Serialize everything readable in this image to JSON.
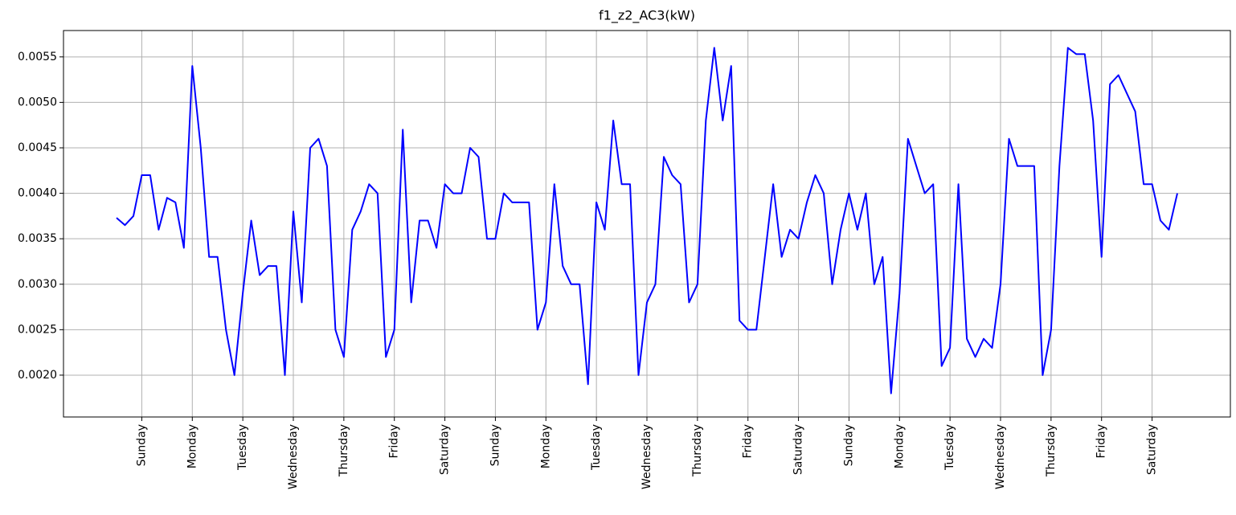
{
  "chart_data": {
    "type": "line",
    "title": "f1_z2_AC3(kW)",
    "categories": [
      null,
      null,
      null,
      "Sunday",
      null,
      null,
      null,
      null,
      null,
      "Monday",
      null,
      null,
      null,
      null,
      null,
      "Tuesday",
      null,
      null,
      null,
      null,
      null,
      "Wednesday",
      null,
      null,
      null,
      null,
      null,
      "Thursday",
      null,
      null,
      null,
      null,
      null,
      "Friday",
      null,
      null,
      null,
      null,
      null,
      "Saturday",
      null,
      null,
      null,
      null,
      null,
      "Sunday",
      null,
      null,
      null,
      null,
      null,
      "Monday",
      null,
      null,
      null,
      null,
      null,
      "Tuesday",
      null,
      null,
      null,
      null,
      null,
      "Wednesday",
      null,
      null,
      null,
      null,
      null,
      "Thursday",
      null,
      null,
      null,
      null,
      null,
      "Friday",
      null,
      null,
      null,
      null,
      null,
      "Saturday",
      null,
      null,
      null,
      null,
      null,
      "Sunday",
      null,
      null,
      null,
      null,
      null,
      "Monday",
      null,
      null,
      null,
      null,
      null,
      "Tuesday",
      null,
      null,
      null,
      null,
      null,
      "Wednesday",
      null,
      null,
      null,
      null,
      null,
      "Thursday",
      null,
      null,
      null,
      null,
      null,
      "Friday",
      null,
      null,
      null,
      null,
      null,
      "Saturday",
      null,
      null,
      null
    ],
    "values": [
      0.00373,
      0.00365,
      0.00375,
      0.0042,
      0.0042,
      0.0036,
      0.00395,
      0.0039,
      0.0034,
      0.0054,
      0.0045,
      0.0033,
      0.0033,
      0.0025,
      0.002,
      0.0029,
      0.0037,
      0.0031,
      0.0032,
      0.0032,
      0.002,
      0.0038,
      0.0028,
      0.0045,
      0.0046,
      0.0043,
      0.0025,
      0.0022,
      0.0036,
      0.0038,
      0.0041,
      0.004,
      0.0022,
      0.0025,
      0.0047,
      0.0028,
      0.0037,
      0.0037,
      0.0034,
      0.0041,
      0.004,
      0.004,
      0.0045,
      0.0044,
      0.0035,
      0.0035,
      0.004,
      0.0039,
      0.0039,
      0.0039,
      0.0025,
      0.0028,
      0.0041,
      0.0032,
      0.003,
      0.003,
      0.0019,
      0.0039,
      0.0036,
      0.0048,
      0.0041,
      0.0041,
      0.002,
      0.0028,
      0.003,
      0.0044,
      0.0042,
      0.0041,
      0.0028,
      0.003,
      0.0048,
      0.0056,
      0.0048,
      0.0054,
      0.0026,
      0.0025,
      0.0025,
      0.0033,
      0.0041,
      0.0033,
      0.0036,
      0.0035,
      0.0039,
      0.0042,
      0.004,
      0.003,
      0.0036,
      0.004,
      0.0036,
      0.004,
      0.003,
      0.0033,
      0.0018,
      0.0029,
      0.0046,
      0.0043,
      0.004,
      0.0041,
      0.0021,
      0.0023,
      0.0041,
      0.0024,
      0.0022,
      0.0024,
      0.0023,
      0.003,
      0.0046,
      0.0043,
      0.0043,
      0.0043,
      0.002,
      0.0025,
      0.0043,
      0.0056,
      0.00553,
      0.00553,
      0.0048,
      0.0033,
      0.0052,
      0.0053,
      0.0051,
      0.0049,
      0.0041,
      0.0041,
      0.0037,
      0.0036,
      0.004
    ],
    "color": "#0000ff",
    "ylim": [
      0.00154,
      0.00579
    ],
    "yticks": [
      {
        "value": 0.002,
        "label": "0.0020"
      },
      {
        "value": 0.0025,
        "label": "0.0025"
      },
      {
        "value": 0.003,
        "label": "0.0030"
      },
      {
        "value": 0.0035,
        "label": "0.0035"
      },
      {
        "value": 0.004,
        "label": "0.0040"
      },
      {
        "value": 0.0045,
        "label": "0.0045"
      },
      {
        "value": 0.005,
        "label": "0.0050"
      },
      {
        "value": 0.0055,
        "label": "0.0055"
      }
    ],
    "grid": true
  }
}
